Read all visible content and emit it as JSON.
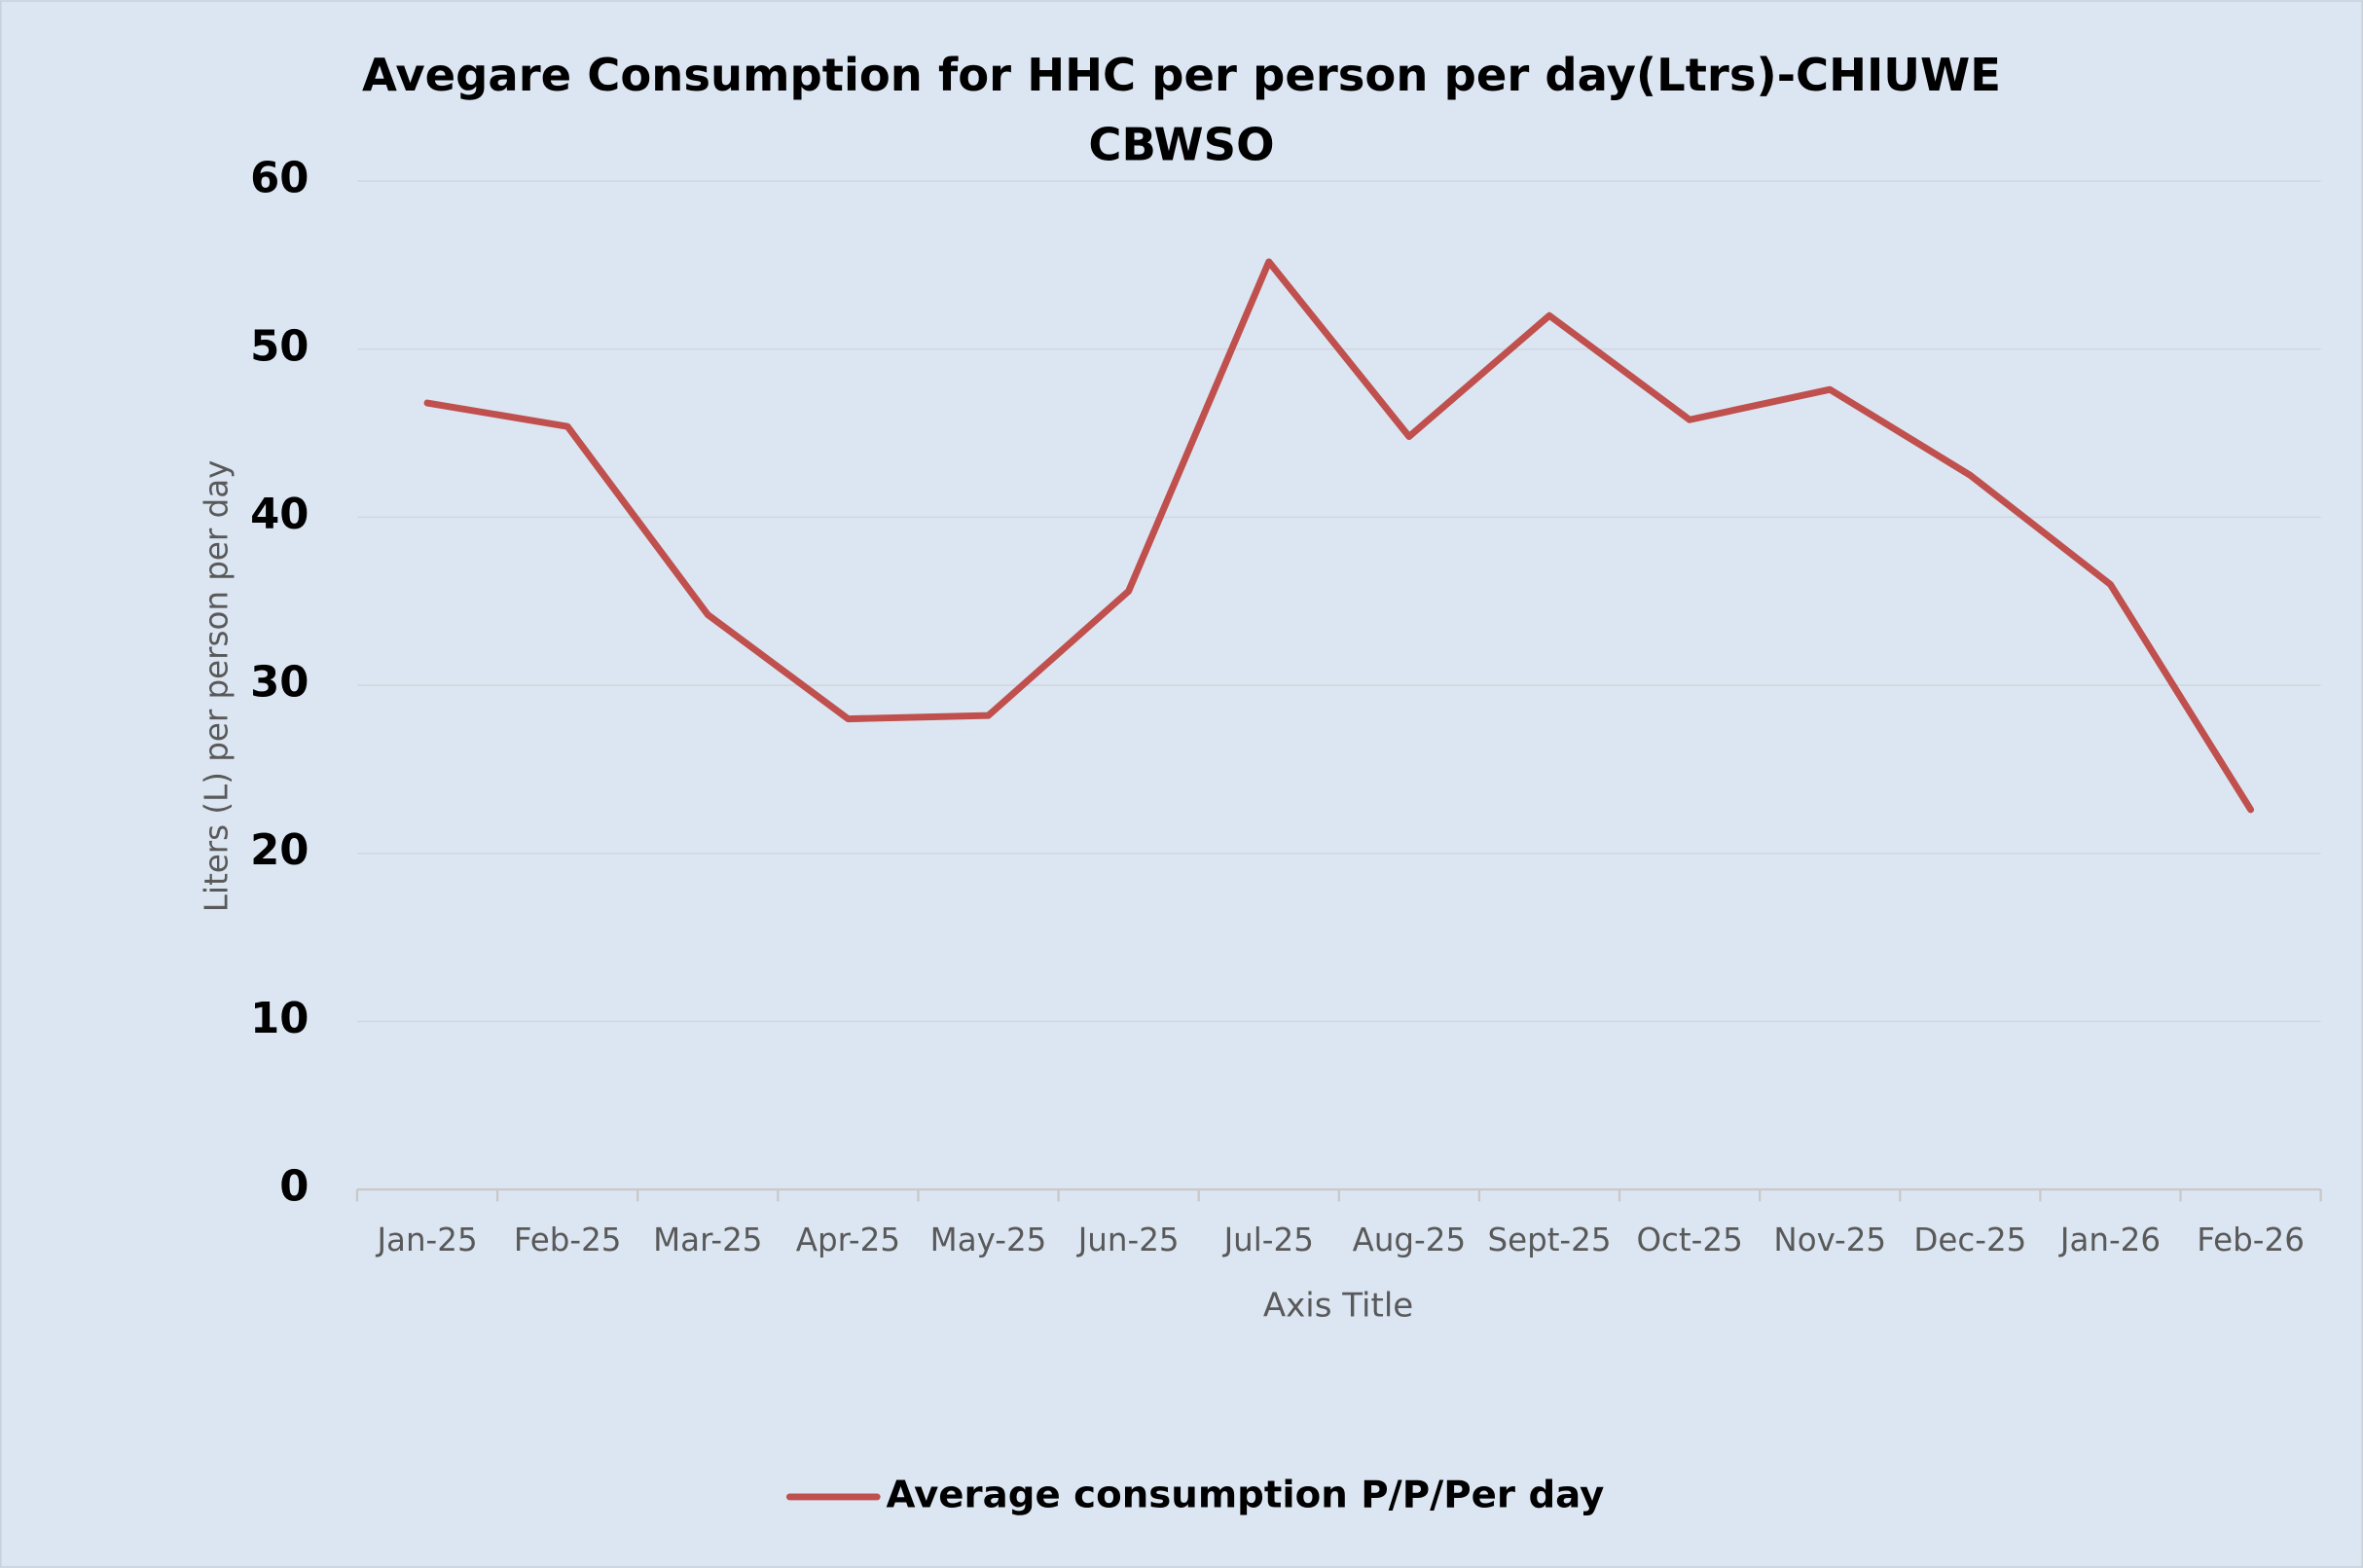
{
  "chart_data": {
    "type": "line",
    "title": "Avegare Consumption for HHC per person per day(Ltrs)-CHIUWE CBWSO",
    "x_label": "Axis Title",
    "y_label": "Liters (L) per person per day",
    "categories": [
      "Jan-25",
      "Feb-25",
      "Mar-25",
      "Apr-25",
      "May-25",
      "Jun-25",
      "Jul-25",
      "Aug-25",
      "Sept-25",
      "Oct-25",
      "Nov-25",
      "Dec-25",
      "Jan-26",
      "Feb-26"
    ],
    "series": [
      {
        "name": "Average consumption P/P/Per day",
        "color": "#c0504d",
        "values": [
          46.8,
          45.4,
          34.2,
          28.0,
          28.2,
          35.6,
          55.2,
          44.8,
          52.0,
          45.8,
          47.6,
          42.5,
          36.0,
          22.6
        ]
      }
    ],
    "ylim": [
      0,
      60
    ],
    "yticks": [
      0,
      10,
      20,
      30,
      40,
      50,
      60
    ],
    "grid": true,
    "legend": "bottom"
  }
}
